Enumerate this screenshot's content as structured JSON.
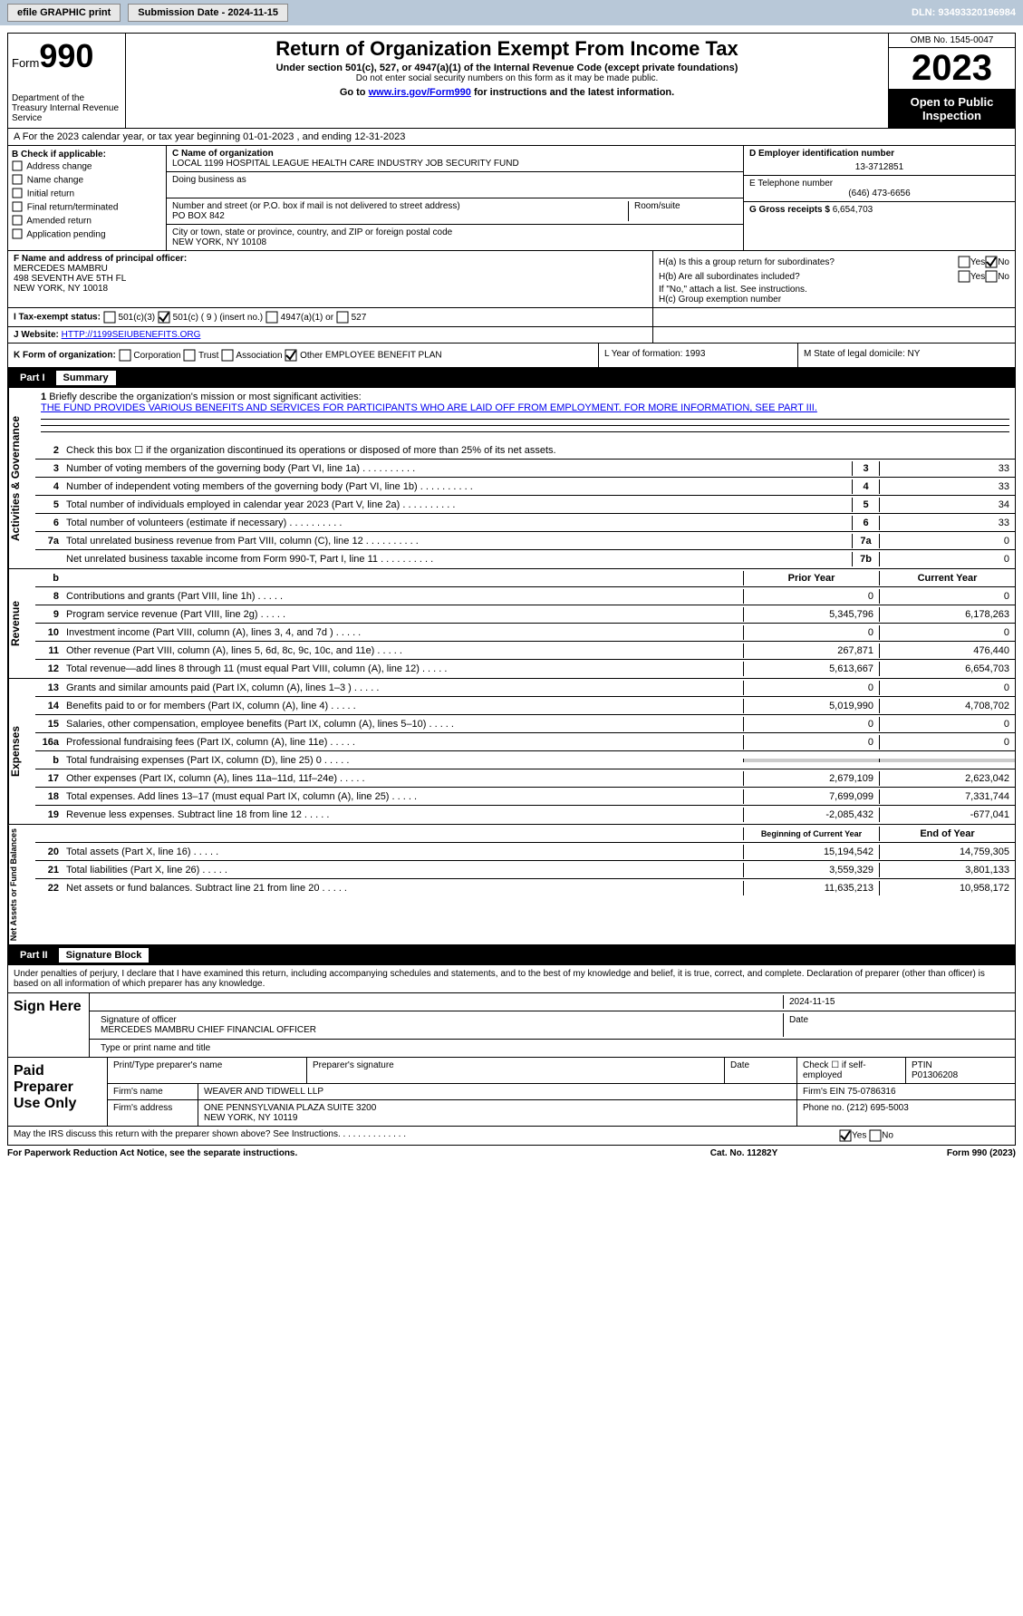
{
  "toolbar": {
    "efile": "efile GRAPHIC print",
    "submission": "Submission Date - 2024-11-15",
    "dln": "DLN: 93493320196984"
  },
  "header": {
    "form_label": "Form",
    "form_number": "990",
    "title": "Return of Organization Exempt From Income Tax",
    "subtitle": "Under section 501(c), 527, or 4947(a)(1) of the Internal Revenue Code (except private foundations)",
    "ssn_note": "Do not enter social security numbers on this form as it may be made public.",
    "goto": "Go to www.irs.gov/Form990 for instructions and the latest information.",
    "goto_url": "www.irs.gov/Form990",
    "dept": "Department of the Treasury\nInternal Revenue Service",
    "omb": "OMB No. 1545-0047",
    "year": "2023",
    "public": "Open to Public Inspection"
  },
  "row_a": "A For the 2023 calendar year, or tax year beginning 01-01-2023   , and ending 12-31-2023",
  "col_b": {
    "label": "B Check if applicable:",
    "items": [
      "Address change",
      "Name change",
      "Initial return",
      "Final return/terminated",
      "Amended return",
      "Application pending"
    ]
  },
  "col_c": {
    "name_label": "C Name of organization",
    "name": "LOCAL 1199 HOSPITAL LEAGUE HEALTH CARE INDUSTRY JOB SECURITY FUND",
    "dba_label": "Doing business as",
    "addr_label": "Number and street (or P.O. box if mail is not delivered to street address)",
    "addr": "PO BOX 842",
    "room_label": "Room/suite",
    "city_label": "City or town, state or province, country, and ZIP or foreign postal code",
    "city": "NEW YORK, NY  10108"
  },
  "col_de": {
    "d_label": "D Employer identification number",
    "ein": "13-3712851",
    "e_label": "E Telephone number",
    "phone": "(646) 473-6656",
    "g_label": "G Gross receipts $",
    "gross": "6,654,703"
  },
  "col_f": {
    "label": "F Name and address of principal officer:",
    "name": "MERCEDES MAMBRU",
    "addr1": "498 SEVENTH AVE 5TH FL",
    "addr2": "NEW YORK, NY  10018"
  },
  "col_h": {
    "ha": "H(a)  Is this a group return for subordinates?",
    "hb": "H(b)  Are all subordinates included?",
    "hb_note": "If \"No,\" attach a list. See instructions.",
    "hc": "H(c)  Group exemption number"
  },
  "row_i": {
    "label": "I  Tax-exempt status:",
    "opts": [
      "501(c)(3)",
      "501(c) ( 9 ) (insert no.)",
      "4947(a)(1) or",
      "527"
    ]
  },
  "row_j": {
    "label": "J  Website:",
    "val": "HTTP://1199SEIUBENEFITS.ORG"
  },
  "row_k": "K Form of organization:",
  "k_opts": [
    "Corporation",
    "Trust",
    "Association",
    "Other"
  ],
  "k_other": "EMPLOYEE BENEFIT PLAN",
  "row_l": "L Year of formation: 1993",
  "row_m": "M State of legal domicile: NY",
  "part1": {
    "label": "Part I",
    "title": "Summary"
  },
  "mission": {
    "num": "1",
    "label": "Briefly describe the organization's mission or most significant activities:",
    "text": "THE FUND PROVIDES VARIOUS BENEFITS AND SERVICES FOR PARTICIPANTS WHO ARE LAID OFF FROM EMPLOYMENT. FOR MORE INFORMATION, SEE PART III."
  },
  "gov_lines": [
    {
      "num": "2",
      "desc": "Check this box ☐ if the organization discontinued its operations or disposed of more than 25% of its net assets."
    },
    {
      "num": "3",
      "desc": "Number of voting members of the governing body (Part VI, line 1a)",
      "box": "3",
      "val": "33"
    },
    {
      "num": "4",
      "desc": "Number of independent voting members of the governing body (Part VI, line 1b)",
      "box": "4",
      "val": "33"
    },
    {
      "num": "5",
      "desc": "Total number of individuals employed in calendar year 2023 (Part V, line 2a)",
      "box": "5",
      "val": "34"
    },
    {
      "num": "6",
      "desc": "Total number of volunteers (estimate if necessary)",
      "box": "6",
      "val": "33"
    },
    {
      "num": "7a",
      "desc": "Total unrelated business revenue from Part VIII, column (C), line 12",
      "box": "7a",
      "val": "0"
    },
    {
      "num": "",
      "desc": "Net unrelated business taxable income from Form 990-T, Part I, line 11",
      "box": "7b",
      "val": "0"
    }
  ],
  "year_header": {
    "prior": "Prior Year",
    "current": "Current Year"
  },
  "rev_lines": [
    {
      "num": "8",
      "desc": "Contributions and grants (Part VIII, line 1h)",
      "prior": "0",
      "curr": "0"
    },
    {
      "num": "9",
      "desc": "Program service revenue (Part VIII, line 2g)",
      "prior": "5,345,796",
      "curr": "6,178,263"
    },
    {
      "num": "10",
      "desc": "Investment income (Part VIII, column (A), lines 3, 4, and 7d )",
      "prior": "0",
      "curr": "0"
    },
    {
      "num": "11",
      "desc": "Other revenue (Part VIII, column (A), lines 5, 6d, 8c, 9c, 10c, and 11e)",
      "prior": "267,871",
      "curr": "476,440"
    },
    {
      "num": "12",
      "desc": "Total revenue—add lines 8 through 11 (must equal Part VIII, column (A), line 12)",
      "prior": "5,613,667",
      "curr": "6,654,703"
    }
  ],
  "exp_lines": [
    {
      "num": "13",
      "desc": "Grants and similar amounts paid (Part IX, column (A), lines 1–3 )",
      "prior": "0",
      "curr": "0"
    },
    {
      "num": "14",
      "desc": "Benefits paid to or for members (Part IX, column (A), line 4)",
      "prior": "5,019,990",
      "curr": "4,708,702"
    },
    {
      "num": "15",
      "desc": "Salaries, other compensation, employee benefits (Part IX, column (A), lines 5–10)",
      "prior": "0",
      "curr": "0"
    },
    {
      "num": "16a",
      "desc": "Professional fundraising fees (Part IX, column (A), line 11e)",
      "prior": "0",
      "curr": "0"
    },
    {
      "num": "b",
      "desc": "Total fundraising expenses (Part IX, column (D), line 25) 0",
      "prior": "",
      "curr": "",
      "gray": true
    },
    {
      "num": "17",
      "desc": "Other expenses (Part IX, column (A), lines 11a–11d, 11f–24e)",
      "prior": "2,679,109",
      "curr": "2,623,042"
    },
    {
      "num": "18",
      "desc": "Total expenses. Add lines 13–17 (must equal Part IX, column (A), line 25)",
      "prior": "7,699,099",
      "curr": "7,331,744"
    },
    {
      "num": "19",
      "desc": "Revenue less expenses. Subtract line 18 from line 12",
      "prior": "-2,085,432",
      "curr": "-677,041"
    }
  ],
  "net_header": {
    "begin": "Beginning of Current Year",
    "end": "End of Year"
  },
  "net_lines": [
    {
      "num": "20",
      "desc": "Total assets (Part X, line 16)",
      "prior": "15,194,542",
      "curr": "14,759,305"
    },
    {
      "num": "21",
      "desc": "Total liabilities (Part X, line 26)",
      "prior": "3,559,329",
      "curr": "3,801,133"
    },
    {
      "num": "22",
      "desc": "Net assets or fund balances. Subtract line 21 from line 20",
      "prior": "11,635,213",
      "curr": "10,958,172"
    }
  ],
  "part2": {
    "label": "Part II",
    "title": "Signature Block"
  },
  "sig": {
    "declare": "Under penalties of perjury, I declare that I have examined this return, including accompanying schedules and statements, and to the best of my knowledge and belief, it is true, correct, and complete. Declaration of preparer (other than officer) is based on all information of which preparer has any knowledge.",
    "sign_here": "Sign Here",
    "sig_label": "Signature of officer",
    "officer": "MERCEDES MAMBRU  CHIEF FINANCIAL OFFICER",
    "type_label": "Type or print name and title",
    "date_label": "Date",
    "date": "2024-11-15"
  },
  "paid": {
    "label": "Paid Preparer Use Only",
    "print_label": "Print/Type preparer's name",
    "sig_label": "Preparer's signature",
    "date_label": "Date",
    "check_label": "Check ☐ if self-employed",
    "ptin_label": "PTIN",
    "ptin": "P01306208",
    "firm_name_label": "Firm's name",
    "firm_name": "WEAVER AND TIDWELL LLP",
    "firm_ein_label": "Firm's EIN",
    "firm_ein": "75-0786316",
    "firm_addr_label": "Firm's address",
    "firm_addr": "ONE PENNSYLVANIA PLAZA SUITE 3200",
    "firm_city": "NEW YORK, NY  10119",
    "phone_label": "Phone no.",
    "phone": "(212) 695-5003"
  },
  "discuss": "May the IRS discuss this return with the preparer shown above? See Instructions.",
  "footer": {
    "paperwork": "For Paperwork Reduction Act Notice, see the separate instructions.",
    "cat": "Cat. No. 11282Y",
    "form": "Form 990 (2023)"
  },
  "vert_labels": {
    "gov": "Activities & Governance",
    "rev": "Revenue",
    "exp": "Expenses",
    "net": "Net Assets or Fund Balances"
  }
}
